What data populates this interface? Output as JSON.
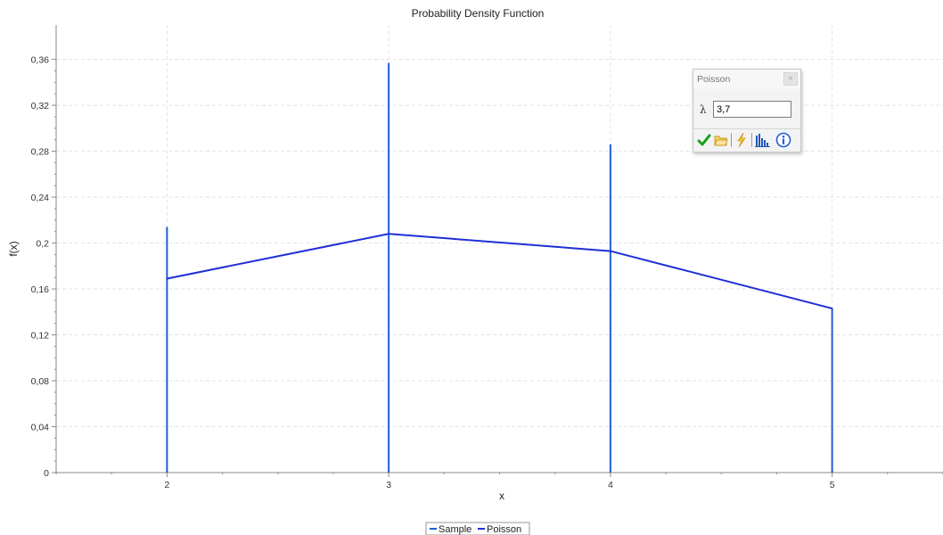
{
  "chart_data": {
    "type": "bar",
    "title": "Probability Density Function",
    "xlabel": "x",
    "ylabel": "f(x)",
    "xlim": [
      1.5,
      5.5
    ],
    "ylim": [
      0,
      0.39
    ],
    "x_ticks": [
      "2",
      "3",
      "4",
      "5"
    ],
    "y_ticks": [
      "0",
      "0,04",
      "0,08",
      "0,12",
      "0,16",
      "0,2",
      "0,24",
      "0,28",
      "0,32",
      "0,36"
    ],
    "grid": true,
    "legend_position": "bottom-center",
    "series": [
      {
        "name": "Sample",
        "kind": "bar",
        "x": [
          2,
          3,
          4,
          5
        ],
        "values": [
          0.214,
          0.357,
          0.286,
          0.143
        ],
        "color": "#1f5fd6"
      },
      {
        "name": "Poisson",
        "kind": "line",
        "x": [
          2,
          3,
          4,
          5
        ],
        "values": [
          0.169,
          0.208,
          0.193,
          0.143
        ],
        "color": "#1f2fd6"
      }
    ]
  },
  "panel": {
    "title": "Poisson",
    "close_label": "×",
    "param_symbol": "λ",
    "param_value": "3,7",
    "tools": [
      {
        "name": "apply-icon",
        "color": "#1a9e1a"
      },
      {
        "name": "open-folder-icon",
        "color": "#e6b422"
      },
      {
        "name": "lightning-icon",
        "color": "#e6b422"
      },
      {
        "name": "histogram-icon",
        "color": "#2255bb"
      },
      {
        "name": "info-icon",
        "color": "#1f5fd6"
      }
    ]
  }
}
